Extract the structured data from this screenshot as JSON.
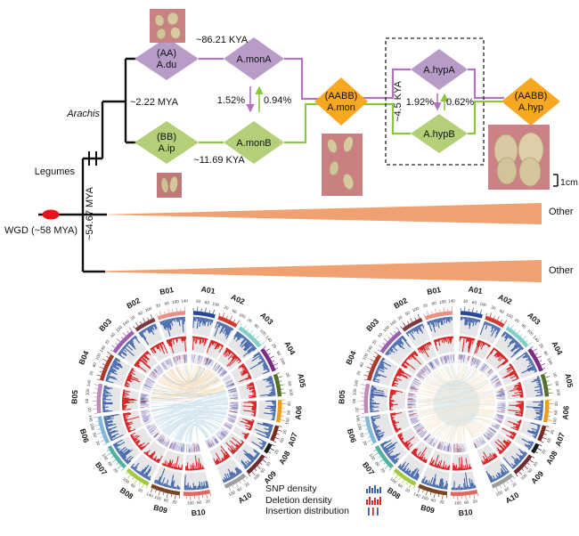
{
  "tree": {
    "legumes": "Legumes",
    "arachis": "Arachis",
    "wgd_label": "WGD (~58 MYA)",
    "mya_5467": "~54.67 MYA",
    "mya_222": "~2.22 MYA",
    "kya_8621": "~86.21 KYA",
    "kya_1169": "~11.69 KYA",
    "kya_45": "~4.5 KYA",
    "flow_a_to_b_mon": "1.52%",
    "flow_b_to_a_mon": "0.94%",
    "flow_a_to_b_hyp": "1.92%",
    "flow_b_to_a_hyp": "0.62%",
    "other_top": "Other",
    "other_bottom": "Other",
    "scale_bar": "1cm",
    "nodes": {
      "adu_l1": "(AA)",
      "adu_l2": "A.du",
      "amona": "A.monA",
      "aip_l1": "(BB)",
      "aip_l2": "A.ip",
      "amonb": "A.monB",
      "amon_l1": "(AABB)",
      "amon_l2": "A.mon",
      "ahypa": "A.hypA",
      "ahypb": "A.hypB",
      "ahyp_l1": "(AABB)",
      "ahyp_l2": "A.hyp"
    },
    "photos": [
      {
        "name": "a-du-seed-photo"
      },
      {
        "name": "a-ip-seed-photo"
      },
      {
        "name": "a-mon-pod-photo"
      },
      {
        "name": "a-hyp-pod-photo"
      }
    ]
  },
  "legend": {
    "items": [
      {
        "label": "SNP density",
        "icon": "blue-histogram-icon"
      },
      {
        "label": "Deletion density",
        "icon": "red-histogram-icon"
      },
      {
        "label": "Insertion distribution",
        "icon": "tick-bars-icon"
      }
    ]
  },
  "colors": {
    "purple_node": "#b79cc8",
    "green_node": "#b3d079",
    "orange_node": "#f7a823",
    "purple_line": "#b173bd",
    "green_line": "#8cc63f",
    "triangle_orange": "#f0a171",
    "wgd_dot_red": "#e8141c",
    "snp": "#3a5fa8",
    "deletion": "#d7292a",
    "insertion": "#a79bd0",
    "track_bg": "#e6e6e9",
    "link_blue": "#9fc7de",
    "link_orange": "#efc287",
    "link_cream": "#f3dcba",
    "link_pale_blue": "#bcdcec"
  },
  "chart_data": [
    {
      "type": "circos",
      "name": "left-circos",
      "tracks": [
        "SNP density",
        "Deletion density",
        "Insertion distribution",
        "Synteny links"
      ],
      "link_profile": "blue",
      "tick_interval_mb": 20,
      "tick_labels": [
        20,
        60,
        100,
        140
      ],
      "chromosomes": [
        {
          "name": "A01",
          "length_mb": 112,
          "color": "#27489c"
        },
        {
          "name": "A02",
          "length_mb": 102,
          "color": "#d03a30"
        },
        {
          "name": "A03",
          "length_mb": 141,
          "color": "#82cfc9"
        },
        {
          "name": "A04",
          "length_mb": 127,
          "color": "#7d2a85"
        },
        {
          "name": "A05",
          "length_mb": 115,
          "color": "#56702a"
        },
        {
          "name": "A06",
          "length_mb": 114,
          "color": "#ee9b22"
        },
        {
          "name": "A07",
          "length_mb": 81,
          "color": "#7a2a22"
        },
        {
          "name": "A08",
          "length_mb": 51,
          "color": "#1d1d1d"
        },
        {
          "name": "A09",
          "length_mb": 120,
          "color": "#6d2c33"
        },
        {
          "name": "A10",
          "length_mb": 117,
          "color": "#9e9e9e"
        },
        {
          "name": "B01",
          "length_mb": 142,
          "color": "#e89086"
        },
        {
          "name": "B02",
          "length_mb": 109,
          "color": "#7b3b45"
        },
        {
          "name": "B03",
          "length_mb": 141,
          "color": "#9a5fae"
        },
        {
          "name": "B04",
          "length_mb": 140,
          "color": "#a93a2e"
        },
        {
          "name": "B05",
          "length_mb": 149,
          "color": "#c08ab8"
        },
        {
          "name": "B06",
          "length_mb": 142,
          "color": "#84b8d8"
        },
        {
          "name": "B07",
          "length_mb": 134,
          "color": "#53b1a1"
        },
        {
          "name": "B08",
          "length_mb": 129,
          "color": "#a3c93e"
        },
        {
          "name": "B09",
          "length_mb": 150,
          "color": "#7a4526"
        },
        {
          "name": "B10",
          "length_mb": 136,
          "color": "#e06a5e"
        }
      ]
    },
    {
      "type": "circos",
      "name": "right-circos",
      "tracks": [
        "SNP density",
        "Deletion density",
        "Insertion distribution",
        "Synteny links"
      ],
      "link_profile": "orange",
      "tick_interval_mb": 20,
      "tick_labels": [
        20,
        60,
        100,
        140
      ],
      "chromosomes": [
        {
          "name": "A01",
          "length_mb": 112,
          "color": "#27489c"
        },
        {
          "name": "A02",
          "length_mb": 102,
          "color": "#d03a30"
        },
        {
          "name": "A03",
          "length_mb": 141,
          "color": "#82cfc9"
        },
        {
          "name": "A04",
          "length_mb": 127,
          "color": "#7d2a85"
        },
        {
          "name": "A05",
          "length_mb": 115,
          "color": "#56702a"
        },
        {
          "name": "A06",
          "length_mb": 114,
          "color": "#ee9b22"
        },
        {
          "name": "A07",
          "length_mb": 81,
          "color": "#7a2a22"
        },
        {
          "name": "A08",
          "length_mb": 51,
          "color": "#1d1d1d"
        },
        {
          "name": "A09",
          "length_mb": 120,
          "color": "#6d2c33"
        },
        {
          "name": "A10",
          "length_mb": 117,
          "color": "#9e9e9e"
        },
        {
          "name": "B01",
          "length_mb": 142,
          "color": "#e89086"
        },
        {
          "name": "B02",
          "length_mb": 109,
          "color": "#7b3b45"
        },
        {
          "name": "B03",
          "length_mb": 141,
          "color": "#9a5fae"
        },
        {
          "name": "B04",
          "length_mb": 140,
          "color": "#a93a2e"
        },
        {
          "name": "B05",
          "length_mb": 149,
          "color": "#c08ab8"
        },
        {
          "name": "B06",
          "length_mb": 142,
          "color": "#84b8d8"
        },
        {
          "name": "B07",
          "length_mb": 134,
          "color": "#53b1a1"
        },
        {
          "name": "B08",
          "length_mb": 129,
          "color": "#a3c93e"
        },
        {
          "name": "B09",
          "length_mb": 150,
          "color": "#7a4526"
        },
        {
          "name": "B10",
          "length_mb": 136,
          "color": "#e06a5e"
        }
      ]
    }
  ]
}
